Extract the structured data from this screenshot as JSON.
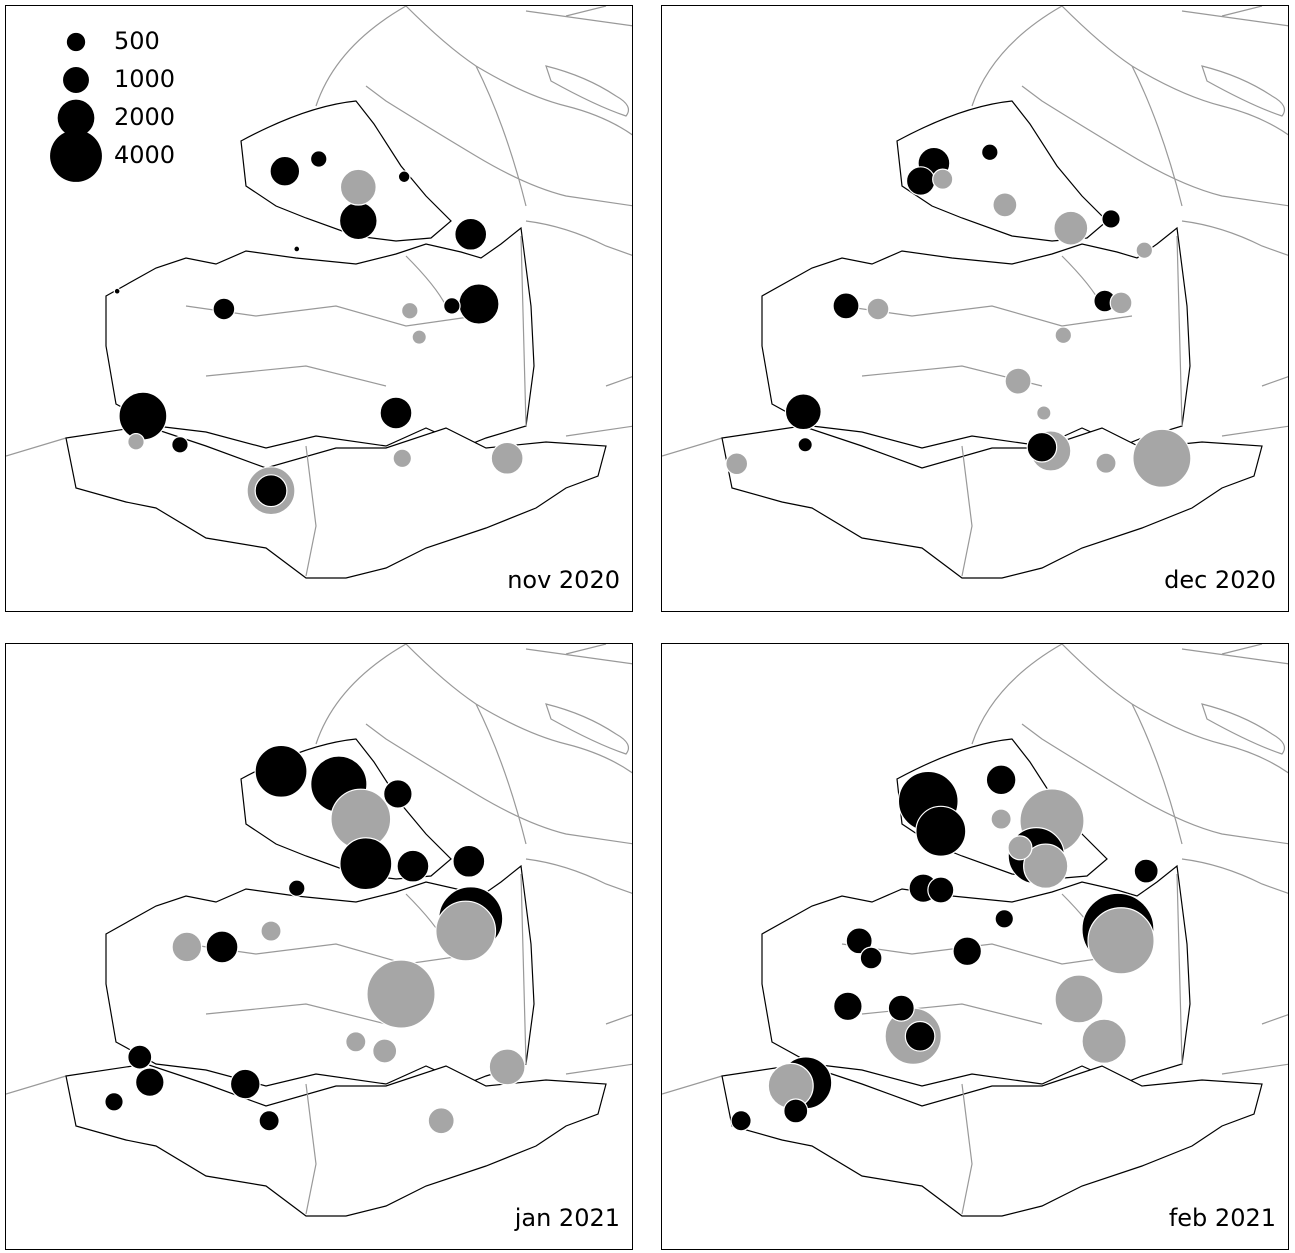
{
  "chart_data": [
    {
      "type": "bubble-map",
      "label": "nov 2020",
      "legend": {
        "sizes": [
          500,
          1000,
          2000,
          4000
        ]
      },
      "points": [
        {
          "x": 21.8,
          "y": 67.0,
          "value": 3400,
          "color": "#000000"
        },
        {
          "x": 42.2,
          "y": 79.2,
          "value": 3400,
          "color": "#a6a6a6"
        },
        {
          "x": 42.2,
          "y": 79.2,
          "value": 1500,
          "color": "#000000"
        },
        {
          "x": 75.3,
          "y": 48.7,
          "value": 2400,
          "color": "#000000"
        },
        {
          "x": 74.0,
          "y": 37.3,
          "value": 1500,
          "color": "#000000"
        },
        {
          "x": 56.1,
          "y": 35.1,
          "value": 2100,
          "color": "#000000"
        },
        {
          "x": 56.1,
          "y": 29.6,
          "value": 1900,
          "color": "#a6a6a6"
        },
        {
          "x": 44.4,
          "y": 27.0,
          "value": 1300,
          "color": "#000000"
        },
        {
          "x": 62.1,
          "y": 66.5,
          "value": 1500,
          "color": "#000000"
        },
        {
          "x": 79.8,
          "y": 73.9,
          "value": 1500,
          "color": "#a6a6a6"
        },
        {
          "x": 34.7,
          "y": 49.5,
          "value": 700,
          "color": "#000000"
        },
        {
          "x": 49.8,
          "y": 25.0,
          "value": 400,
          "color": "#000000"
        },
        {
          "x": 63.4,
          "y": 27.9,
          "value": 200,
          "color": "#000000"
        },
        {
          "x": 64.3,
          "y": 49.8,
          "value": 400,
          "color": "#a6a6a6"
        },
        {
          "x": 27.7,
          "y": 71.7,
          "value": 400,
          "color": "#000000"
        },
        {
          "x": 20.7,
          "y": 71.2,
          "value": 400,
          "color": "#a6a6a6"
        },
        {
          "x": 63.1,
          "y": 73.9,
          "value": 500,
          "color": "#a6a6a6"
        },
        {
          "x": 71.0,
          "y": 49.0,
          "value": 400,
          "color": "#000000"
        },
        {
          "x": 65.8,
          "y": 54.1,
          "value": 300,
          "color": "#a6a6a6"
        },
        {
          "x": 17.7,
          "y": 46.6,
          "value": 50,
          "color": "#000000"
        },
        {
          "x": 46.3,
          "y": 39.7,
          "value": 50,
          "color": "#000000"
        }
      ]
    },
    {
      "type": "bubble-map",
      "label": "dec 2020",
      "points": [
        {
          "x": 79.6,
          "y": 73.9,
          "value": 5000,
          "color": "#a6a6a6"
        },
        {
          "x": 61.9,
          "y": 72.7,
          "value": 2400,
          "color": "#a6a6a6"
        },
        {
          "x": 60.5,
          "y": 72.1,
          "value": 1300,
          "color": "#000000"
        },
        {
          "x": 43.3,
          "y": 25.7,
          "value": 1500,
          "color": "#000000"
        },
        {
          "x": 41.2,
          "y": 28.6,
          "value": 1200,
          "color": "#000000"
        },
        {
          "x": 65.1,
          "y": 36.3,
          "value": 1700,
          "color": "#a6a6a6"
        },
        {
          "x": 22.5,
          "y": 66.3,
          "value": 1900,
          "color": "#000000"
        },
        {
          "x": 29.3,
          "y": 49.0,
          "value": 1000,
          "color": "#000000"
        },
        {
          "x": 34.4,
          "y": 49.5,
          "value": 700,
          "color": "#a6a6a6"
        },
        {
          "x": 56.7,
          "y": 61.3,
          "value": 1000,
          "color": "#a6a6a6"
        },
        {
          "x": 70.5,
          "y": 48.2,
          "value": 700,
          "color": "#000000"
        },
        {
          "x": 73.1,
          "y": 48.5,
          "value": 700,
          "color": "#a6a6a6"
        },
        {
          "x": 71.5,
          "y": 34.8,
          "value": 500,
          "color": "#000000"
        },
        {
          "x": 70.7,
          "y": 74.7,
          "value": 600,
          "color": "#a6a6a6"
        },
        {
          "x": 54.6,
          "y": 32.5,
          "value": 850,
          "color": "#a6a6a6"
        },
        {
          "x": 11.9,
          "y": 74.8,
          "value": 700,
          "color": "#a6a6a6"
        },
        {
          "x": 52.2,
          "y": 23.9,
          "value": 400,
          "color": "#000000"
        },
        {
          "x": 76.8,
          "y": 39.9,
          "value": 400,
          "color": "#a6a6a6"
        },
        {
          "x": 44.7,
          "y": 28.3,
          "value": 600,
          "color": "#a6a6a6"
        },
        {
          "x": 63.9,
          "y": 53.8,
          "value": 400,
          "color": "#a6a6a6"
        },
        {
          "x": 22.8,
          "y": 71.7,
          "value": 300,
          "color": "#000000"
        },
        {
          "x": 60.8,
          "y": 66.5,
          "value": 300,
          "color": "#a6a6a6"
        }
      ]
    },
    {
      "type": "bubble-map",
      "label": "jan 2021",
      "points": [
        {
          "x": 62.9,
          "y": 57.2,
          "value": 6900,
          "color": "#a6a6a6"
        },
        {
          "x": 43.8,
          "y": 20.8,
          "value": 4000,
          "color": "#000000"
        },
        {
          "x": 53.0,
          "y": 22.9,
          "value": 4700,
          "color": "#000000"
        },
        {
          "x": 56.5,
          "y": 28.6,
          "value": 5300,
          "color": "#a6a6a6"
        },
        {
          "x": 57.3,
          "y": 35.9,
          "value": 4000,
          "color": "#000000"
        },
        {
          "x": 74.0,
          "y": 44.9,
          "value": 6100,
          "color": "#000000"
        },
        {
          "x": 73.2,
          "y": 46.9,
          "value": 5300,
          "color": "#a6a6a6"
        },
        {
          "x": 79.8,
          "y": 69.1,
          "value": 1900,
          "color": "#a6a6a6"
        },
        {
          "x": 34.4,
          "y": 49.5,
          "value": 1500,
          "color": "#000000"
        },
        {
          "x": 28.8,
          "y": 49.5,
          "value": 1300,
          "color": "#a6a6a6"
        },
        {
          "x": 38.1,
          "y": 71.9,
          "value": 1300,
          "color": "#000000"
        },
        {
          "x": 62.4,
          "y": 24.5,
          "value": 1200,
          "color": "#000000"
        },
        {
          "x": 22.9,
          "y": 71.6,
          "value": 1200,
          "color": "#000000"
        },
        {
          "x": 21.3,
          "y": 67.5,
          "value": 850,
          "color": "#000000"
        },
        {
          "x": 17.2,
          "y": 74.8,
          "value": 500,
          "color": "#000000"
        },
        {
          "x": 69.3,
          "y": 77.9,
          "value": 1000,
          "color": "#a6a6a6"
        },
        {
          "x": 64.8,
          "y": 36.3,
          "value": 1500,
          "color": "#000000"
        },
        {
          "x": 73.7,
          "y": 35.5,
          "value": 1500,
          "color": "#000000"
        },
        {
          "x": 46.3,
          "y": 39.9,
          "value": 400,
          "color": "#000000"
        },
        {
          "x": 60.3,
          "y": 66.5,
          "value": 850,
          "color": "#a6a6a6"
        },
        {
          "x": 55.7,
          "y": 65.0,
          "value": 600,
          "color": "#a6a6a6"
        },
        {
          "x": 42.2,
          "y": 46.9,
          "value": 600,
          "color": "#a6a6a6"
        },
        {
          "x": 41.9,
          "y": 77.9,
          "value": 600,
          "color": "#000000"
        }
      ]
    },
    {
      "type": "bubble-map",
      "label": "feb 2021",
      "points": [
        {
          "x": 72.6,
          "y": 46.6,
          "value": 7700,
          "color": "#000000"
        },
        {
          "x": 73.1,
          "y": 48.5,
          "value": 6500,
          "color": "#a6a6a6"
        },
        {
          "x": 62.1,
          "y": 28.9,
          "value": 6100,
          "color": "#a6a6a6"
        },
        {
          "x": 59.6,
          "y": 34.6,
          "value": 4700,
          "color": "#000000"
        },
        {
          "x": 61.1,
          "y": 36.3,
          "value": 2900,
          "color": "#a6a6a6"
        },
        {
          "x": 42.4,
          "y": 25.7,
          "value": 5300,
          "color": "#000000"
        },
        {
          "x": 44.4,
          "y": 30.6,
          "value": 3700,
          "color": "#000000"
        },
        {
          "x": 66.4,
          "y": 58.0,
          "value": 3400,
          "color": "#a6a6a6"
        },
        {
          "x": 70.4,
          "y": 64.9,
          "value": 2900,
          "color": "#a6a6a6"
        },
        {
          "x": 22.9,
          "y": 71.7,
          "value": 4000,
          "color": "#000000"
        },
        {
          "x": 20.5,
          "y": 72.2,
          "value": 3000,
          "color": "#a6a6a6"
        },
        {
          "x": 40.0,
          "y": 64.1,
          "value": 4700,
          "color": "#a6a6a6"
        },
        {
          "x": 41.1,
          "y": 64.1,
          "value": 1300,
          "color": "#000000"
        },
        {
          "x": 54.0,
          "y": 22.2,
          "value": 1300,
          "color": "#000000"
        },
        {
          "x": 77.1,
          "y": 37.1,
          "value": 850,
          "color": "#000000"
        },
        {
          "x": 29.6,
          "y": 59.2,
          "value": 1200,
          "color": "#000000"
        },
        {
          "x": 41.6,
          "y": 39.9,
          "value": 1200,
          "color": "#000000"
        },
        {
          "x": 44.4,
          "y": 40.2,
          "value": 1000,
          "color": "#000000"
        },
        {
          "x": 48.6,
          "y": 50.2,
          "value": 1200,
          "color": "#000000"
        },
        {
          "x": 31.4,
          "y": 48.5,
          "value": 1000,
          "color": "#000000"
        },
        {
          "x": 33.3,
          "y": 51.3,
          "value": 700,
          "color": "#000000"
        },
        {
          "x": 38.1,
          "y": 59.5,
          "value": 1000,
          "color": "#000000"
        },
        {
          "x": 21.3,
          "y": 76.3,
          "value": 850,
          "color": "#000000"
        },
        {
          "x": 12.6,
          "y": 77.9,
          "value": 600,
          "color": "#000000"
        },
        {
          "x": 54.0,
          "y": 28.6,
          "value": 600,
          "color": "#a6a6a6"
        },
        {
          "x": 57.0,
          "y": 33.3,
          "value": 850,
          "color": "#a6a6a6"
        },
        {
          "x": 54.5,
          "y": 44.9,
          "value": 500,
          "color": "#000000"
        }
      ]
    }
  ]
}
